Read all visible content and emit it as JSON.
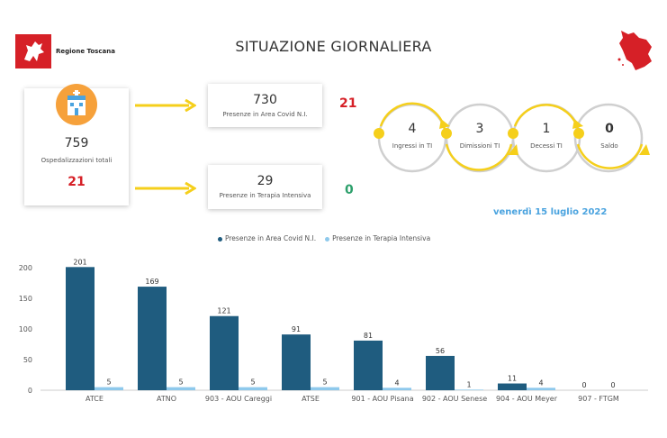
{
  "header": {
    "region_name": "Regione Toscana",
    "title": "SITUAZIONE GIORNALIERA"
  },
  "totals": {
    "hospitalizations": "759",
    "hospitalizations_label": "Ospedalizzazioni totali",
    "hospitalizations_delta": "21",
    "covid_area": "730",
    "covid_area_label": "Presenze in Area Covid N.I.",
    "covid_area_delta": "21",
    "intensive": "29",
    "intensive_label": "Presenze in Terapia Intensiva",
    "intensive_delta": "0"
  },
  "flow": [
    {
      "value": "4",
      "label": "Ingressi in TI"
    },
    {
      "value": "3",
      "label": "Dimissioni TI"
    },
    {
      "value": "1",
      "label": "Decessi TI"
    },
    {
      "value": "0",
      "label": "Saldo"
    }
  ],
  "date": "venerdì 15 luglio 2022",
  "colors": {
    "dark_series": "#1f5c7f",
    "light_series": "#8ec9ec",
    "red": "#d62027",
    "green": "#2ea06c",
    "yellow": "#f5cf1b"
  },
  "chart_data": {
    "type": "bar",
    "categories": [
      "ATCE",
      "ATNO",
      "903 - AOU Careggi",
      "ATSE",
      "901 - AOU Pisana",
      "902 - AOU Senese",
      "904 - AOU Meyer",
      "907 - FTGM"
    ],
    "series": [
      {
        "name": "Presenze in Area Covid N.I.",
        "values": [
          201,
          169,
          121,
          91,
          81,
          56,
          11,
          0
        ]
      },
      {
        "name": "Presenze in Terapia Intensiva",
        "values": [
          5,
          5,
          5,
          5,
          4,
          1,
          4,
          0
        ]
      }
    ],
    "yticks": [
      "200",
      "150",
      "100",
      "50",
      "0"
    ],
    "ylim": [
      0,
      200
    ]
  }
}
